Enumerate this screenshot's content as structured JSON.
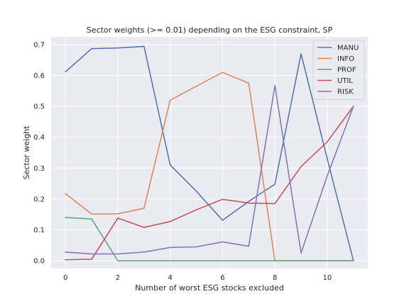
{
  "chart_data": {
    "type": "line",
    "title": "Sector weights (>= 0.01) depending on the ESG constraint, SP",
    "xlabel": "Number of worst ESG stocks excluded",
    "ylabel": "Sector weight",
    "x": [
      0,
      1,
      2,
      3,
      4,
      5,
      6,
      7,
      8,
      9,
      10,
      11
    ],
    "xlim": [
      -0.55,
      11.55
    ],
    "ylim": [
      -0.025,
      0.725
    ],
    "xticks": [
      0,
      2,
      4,
      6,
      8,
      10
    ],
    "yticks": [
      0.0,
      0.1,
      0.2,
      0.3,
      0.4,
      0.5,
      0.6,
      0.7
    ],
    "ytick_labels": [
      "0.0",
      "0.1",
      "0.2",
      "0.3",
      "0.4",
      "0.5",
      "0.6",
      "0.7"
    ],
    "grid": true,
    "legend_position": "top-right",
    "series": [
      {
        "name": "MANU",
        "color": "#4c72b0",
        "values": [
          0.612,
          0.687,
          0.689,
          0.694,
          0.31,
          0.225,
          0.131,
          0.192,
          0.248,
          0.67,
          0.33,
          0.0
        ]
      },
      {
        "name": "INFO",
        "color": "#dd8452",
        "values": [
          0.217,
          0.151,
          0.152,
          0.17,
          0.52,
          0.565,
          0.61,
          0.575,
          0.0,
          0.0,
          0.0,
          0.0
        ]
      },
      {
        "name": "PROF",
        "color": "#55a868",
        "values": [
          0.14,
          0.135,
          0.0,
          0.0,
          0.0,
          0.0,
          0.0,
          0.0,
          0.0,
          0.0,
          0.0,
          0.0
        ]
      },
      {
        "name": "UTIL",
        "color": "#c44e52",
        "values": [
          0.003,
          0.005,
          0.138,
          0.108,
          0.127,
          0.165,
          0.199,
          0.187,
          0.185,
          0.305,
          0.385,
          0.5
        ]
      },
      {
        "name": "RISK",
        "color": "#8172b3",
        "values": [
          0.028,
          0.022,
          0.022,
          0.028,
          0.043,
          0.045,
          0.061,
          0.047,
          0.567,
          0.025,
          0.275,
          0.5
        ]
      }
    ]
  }
}
